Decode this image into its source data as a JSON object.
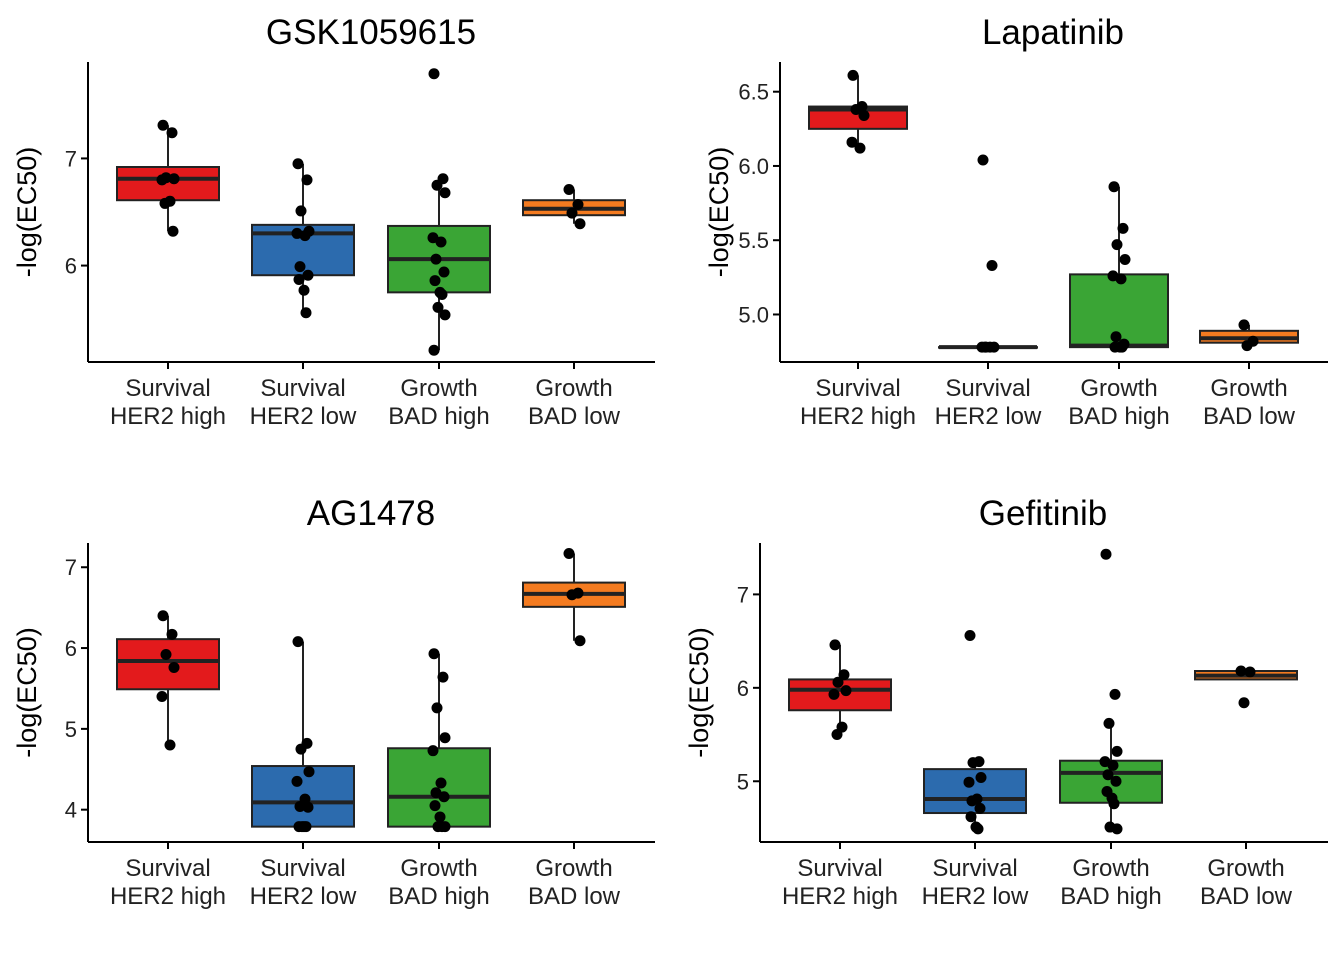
{
  "chart_data": [
    {
      "type": "box",
      "title": "GSK1059615",
      "ylabel": "-log(EC50)",
      "ylim": [
        5.1,
        7.9
      ],
      "yticks": [
        6,
        7
      ],
      "categories": [
        [
          "Survival",
          "HER2 high"
        ],
        [
          "Survival",
          "HER2 low"
        ],
        [
          "Growth",
          "BAD high"
        ],
        [
          "Growth",
          "BAD low"
        ]
      ],
      "boxes": [
        {
          "q1": 6.61,
          "median": 6.81,
          "q3": 6.92,
          "whisker_low": 6.32,
          "whisker_high": 7.31
        },
        {
          "q1": 5.91,
          "median": 6.3,
          "q3": 6.38,
          "whisker_low": 5.56,
          "whisker_high": 6.95
        },
        {
          "q1": 5.75,
          "median": 6.06,
          "q3": 6.37,
          "whisker_low": 5.21,
          "whisker_high": 6.81
        },
        {
          "q1": 6.47,
          "median": 6.53,
          "q3": 6.61,
          "whisker_low": 6.39,
          "whisker_high": 6.71
        }
      ],
      "points": [
        [
          7.31,
          7.24,
          6.82,
          6.81,
          6.8,
          6.6,
          6.58,
          6.32
        ],
        [
          6.95,
          6.8,
          6.51,
          6.32,
          6.3,
          6.28,
          5.99,
          5.91,
          5.87,
          5.77,
          5.56
        ],
        [
          7.79,
          6.81,
          6.75,
          6.68,
          6.26,
          6.22,
          6.06,
          5.94,
          5.86,
          5.75,
          5.73,
          5.61,
          5.54,
          5.21
        ],
        [
          6.71,
          6.57,
          6.49,
          6.39
        ]
      ]
    },
    {
      "type": "box",
      "title": "Lapatinib",
      "ylabel": "-log(EC50)",
      "ylim": [
        4.68,
        6.7
      ],
      "yticks": [
        5.0,
        5.5,
        6.0,
        6.5
      ],
      "ytick_labels": [
        "5.0",
        "5.5",
        "6.0",
        "6.5"
      ],
      "categories": [
        [
          "Survival",
          "HER2 high"
        ],
        [
          "Survival",
          "HER2 low"
        ],
        [
          "Growth",
          "BAD high"
        ],
        [
          "Growth",
          "BAD low"
        ]
      ],
      "boxes": [
        {
          "q1": 6.25,
          "median": 6.38,
          "q3": 6.4,
          "whisker_low": 6.12,
          "whisker_high": 6.61
        },
        {
          "q1": 4.78,
          "median": 4.78,
          "q3": 4.78,
          "whisker_low": 4.78,
          "whisker_high": 4.78
        },
        {
          "q1": 4.78,
          "median": 4.79,
          "q3": 5.27,
          "whisker_low": 4.78,
          "whisker_high": 5.86
        },
        {
          "q1": 4.81,
          "median": 4.84,
          "q3": 4.89,
          "whisker_low": 4.78,
          "whisker_high": 4.93
        }
      ],
      "points": [
        [
          6.61,
          6.4,
          6.38,
          6.34,
          6.16,
          6.12
        ],
        [
          6.04,
          5.33,
          4.78,
          4.78,
          4.78,
          4.78,
          4.78
        ],
        [
          5.86,
          5.58,
          5.47,
          5.37,
          5.26,
          5.24,
          4.85,
          4.8,
          4.78,
          4.78,
          4.78
        ],
        [
          4.93,
          4.82,
          4.79
        ]
      ]
    },
    {
      "type": "box",
      "title": "AG1478",
      "ylabel": "-log(EC50)",
      "ylim": [
        3.6,
        7.3
      ],
      "yticks": [
        4,
        5,
        6,
        7
      ],
      "categories": [
        [
          "Survival",
          "HER2 high"
        ],
        [
          "Survival",
          "HER2 low"
        ],
        [
          "Growth",
          "BAD high"
        ],
        [
          "Growth",
          "BAD low"
        ]
      ],
      "boxes": [
        {
          "q1": 5.49,
          "median": 5.84,
          "q3": 6.11,
          "whisker_low": 4.8,
          "whisker_high": 6.4
        },
        {
          "q1": 3.79,
          "median": 4.09,
          "q3": 4.54,
          "whisker_low": 3.79,
          "whisker_high": 6.08
        },
        {
          "q1": 3.79,
          "median": 4.16,
          "q3": 4.76,
          "whisker_low": 3.79,
          "whisker_high": 5.93
        },
        {
          "q1": 6.51,
          "median": 6.67,
          "q3": 6.81,
          "whisker_low": 6.09,
          "whisker_high": 7.17
        }
      ],
      "points": [
        [
          6.4,
          6.17,
          5.92,
          5.76,
          5.4,
          4.8
        ],
        [
          6.08,
          4.82,
          4.75,
          4.47,
          4.35,
          4.13,
          4.04,
          4.03,
          3.79,
          3.79,
          3.79,
          3.79
        ],
        [
          5.93,
          5.64,
          5.26,
          4.89,
          4.73,
          4.33,
          4.21,
          4.16,
          4.05,
          3.91,
          3.79,
          3.79,
          3.79
        ],
        [
          7.17,
          6.68,
          6.66,
          6.09
        ]
      ]
    },
    {
      "type": "box",
      "title": "Gefitinib",
      "ylabel": "-log(EC50)",
      "ylim": [
        4.35,
        7.55
      ],
      "yticks": [
        5,
        6,
        7
      ],
      "categories": [
        [
          "Survival",
          "HER2 high"
        ],
        [
          "Survival",
          "HER2 low"
        ],
        [
          "Growth",
          "BAD high"
        ],
        [
          "Growth",
          "BAD low"
        ]
      ],
      "boxes": [
        {
          "q1": 5.76,
          "median": 5.98,
          "q3": 6.09,
          "whisker_low": 5.5,
          "whisker_high": 6.46
        },
        {
          "q1": 4.66,
          "median": 4.81,
          "q3": 5.13,
          "whisker_low": 4.49,
          "whisker_high": 5.21
        },
        {
          "q1": 4.77,
          "median": 5.09,
          "q3": 5.22,
          "whisker_low": 4.49,
          "whisker_high": 5.61
        },
        {
          "q1": 6.09,
          "median": 6.13,
          "q3": 6.18,
          "whisker_low": 6.09,
          "whisker_high": 6.18
        }
      ],
      "points": [
        [
          6.46,
          6.14,
          6.06,
          5.97,
          5.93,
          5.58,
          5.5
        ],
        [
          6.56,
          5.21,
          5.2,
          5.04,
          4.99,
          4.81,
          4.79,
          4.71,
          4.62,
          4.51,
          4.49
        ],
        [
          7.43,
          5.93,
          5.62,
          5.32,
          5.21,
          5.17,
          5.07,
          5.0,
          4.89,
          4.82,
          4.76,
          4.51,
          4.49
        ],
        [
          6.18,
          6.17,
          5.84
        ]
      ]
    }
  ],
  "colors": {
    "survival_her2_high": "#E31A1C",
    "survival_her2_low": "#2C6BAE",
    "growth_bad_high": "#3AA535",
    "growth_bad_low": "#F47B20",
    "box_outline": "#222222",
    "points": "#000000",
    "axis": "#000000"
  }
}
